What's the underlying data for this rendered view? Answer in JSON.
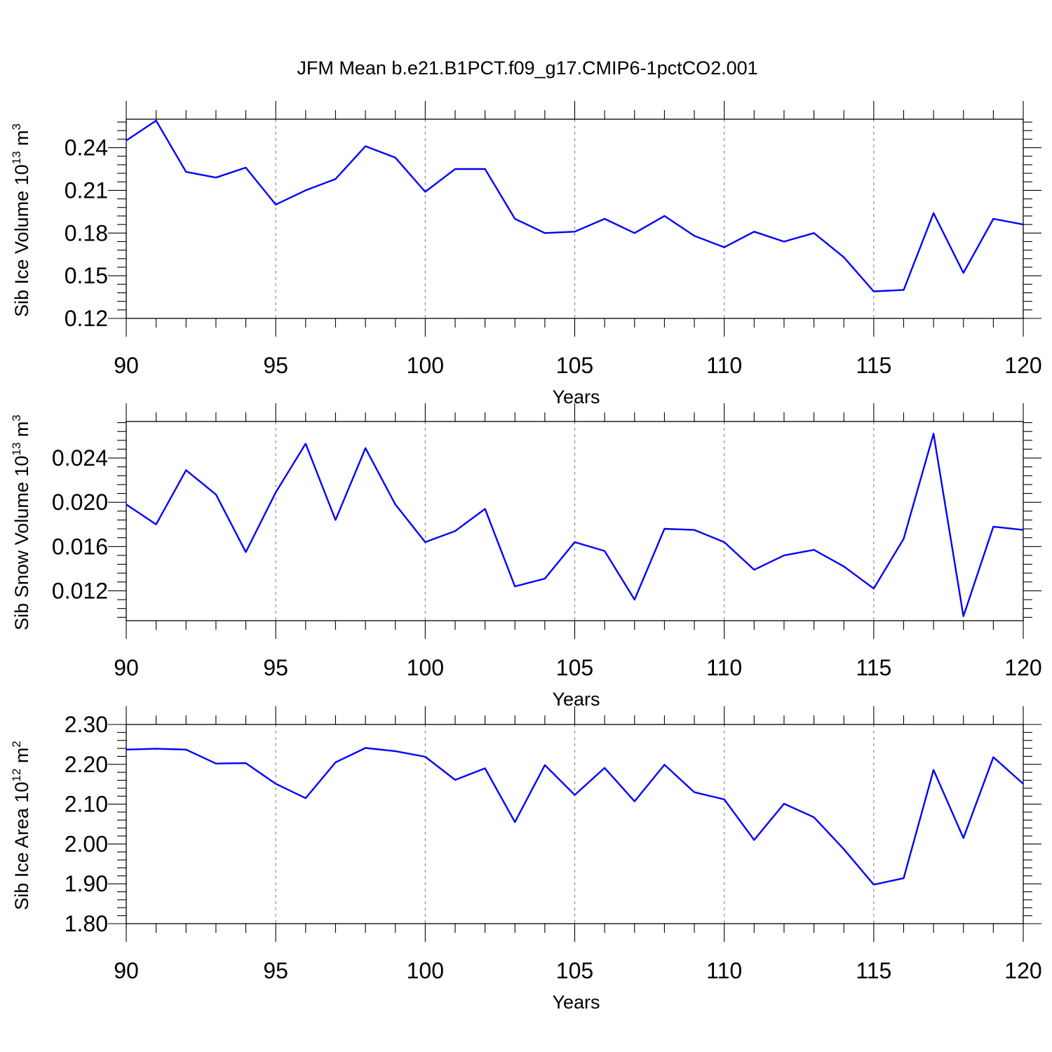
{
  "title": "JFM Mean b.e21.B1PCT.f09_g17.CMIP6-1pctCO2.001",
  "colors": {
    "series": "#0000ff",
    "grid": "#7f7f7f",
    "axes": "#000000"
  },
  "chart_data": [
    {
      "type": "line",
      "ylabel": {
        "text": "Sib Ice Volume 10",
        "sup_exp": "13",
        "unit": " m",
        "sup_unit": "3"
      },
      "xlabel": "Years",
      "xlim": [
        90,
        120
      ],
      "ylim": [
        0.12,
        0.26
      ],
      "xticks": [
        90,
        95,
        100,
        105,
        110,
        115,
        120
      ],
      "xtick_labels": [
        "90",
        "95",
        "100",
        "105",
        "110",
        "115",
        "120"
      ],
      "yticks": [
        0.12,
        0.15,
        0.18,
        0.21,
        0.24
      ],
      "ytick_labels": [
        "0.12",
        "0.15",
        "0.18",
        "0.21",
        "0.24"
      ],
      "grid": "dashed vertical at major x ticks",
      "x": [
        90,
        91,
        92,
        93,
        94,
        95,
        96,
        97,
        98,
        99,
        100,
        101,
        102,
        103,
        104,
        105,
        106,
        107,
        108,
        109,
        110,
        111,
        112,
        113,
        114,
        115,
        116,
        117,
        118,
        119,
        120
      ],
      "values": [
        0.245,
        0.259,
        0.223,
        0.219,
        0.226,
        0.2,
        0.21,
        0.218,
        0.241,
        0.233,
        0.209,
        0.225,
        0.225,
        0.19,
        0.18,
        0.181,
        0.19,
        0.18,
        0.192,
        0.178,
        0.17,
        0.181,
        0.174,
        0.18,
        0.163,
        0.139,
        0.14,
        0.194,
        0.152,
        0.19,
        0.186
      ]
    },
    {
      "type": "line",
      "ylabel": {
        "text": "Sib Snow Volume 10",
        "sup_exp": "13",
        "unit": " m",
        "sup_unit": "3"
      },
      "xlabel": "Years",
      "xlim": [
        90,
        120
      ],
      "ylim": [
        0.0093,
        0.0273
      ],
      "xticks": [
        90,
        95,
        100,
        105,
        110,
        115,
        120
      ],
      "xtick_labels": [
        "90",
        "95",
        "100",
        "105",
        "110",
        "115",
        "120"
      ],
      "yticks": [
        0.012,
        0.016,
        0.02,
        0.024
      ],
      "ytick_labels": [
        "0.012",
        "0.016",
        "0.020",
        "0.024"
      ],
      "grid": "dashed vertical at major x ticks",
      "x": [
        90,
        91,
        92,
        93,
        94,
        95,
        96,
        97,
        98,
        99,
        100,
        101,
        102,
        103,
        104,
        105,
        106,
        107,
        108,
        109,
        110,
        111,
        112,
        113,
        114,
        115,
        116,
        117,
        118,
        119,
        120
      ],
      "values": [
        0.0198,
        0.018,
        0.0229,
        0.0207,
        0.0155,
        0.0209,
        0.0253,
        0.0184,
        0.0249,
        0.0198,
        0.0164,
        0.0174,
        0.0194,
        0.0124,
        0.0131,
        0.0164,
        0.0156,
        0.0112,
        0.0176,
        0.0175,
        0.0164,
        0.0139,
        0.0152,
        0.0157,
        0.0142,
        0.0122,
        0.0167,
        0.0262,
        0.0097,
        0.0178,
        0.0175
      ]
    },
    {
      "type": "line",
      "ylabel": {
        "text": "Sib Ice Area 10",
        "sup_exp": "12",
        "unit": " m",
        "sup_unit": "2"
      },
      "xlabel": "Years",
      "xlim": [
        90,
        120
      ],
      "ylim": [
        1.8,
        2.3
      ],
      "xticks": [
        90,
        95,
        100,
        105,
        110,
        115,
        120
      ],
      "xtick_labels": [
        "90",
        "95",
        "100",
        "105",
        "110",
        "115",
        "120"
      ],
      "yticks": [
        1.8,
        1.9,
        2.0,
        2.1,
        2.2,
        2.3
      ],
      "ytick_labels": [
        "1.80",
        "1.90",
        "2.00",
        "2.10",
        "2.20",
        "2.30"
      ],
      "grid": "dashed vertical at major x ticks",
      "x": [
        90,
        91,
        92,
        93,
        94,
        95,
        96,
        97,
        98,
        99,
        100,
        101,
        102,
        103,
        104,
        105,
        106,
        107,
        108,
        109,
        110,
        111,
        112,
        113,
        114,
        115,
        116,
        117,
        118,
        119,
        120
      ],
      "values": [
        2.237,
        2.239,
        2.237,
        2.202,
        2.203,
        2.151,
        2.115,
        2.205,
        2.241,
        2.233,
        2.219,
        2.161,
        2.19,
        2.055,
        2.198,
        2.123,
        2.191,
        2.107,
        2.199,
        2.13,
        2.112,
        2.01,
        2.101,
        2.067,
        1.987,
        1.898,
        1.914,
        2.186,
        2.015,
        2.218,
        2.151
      ]
    }
  ]
}
